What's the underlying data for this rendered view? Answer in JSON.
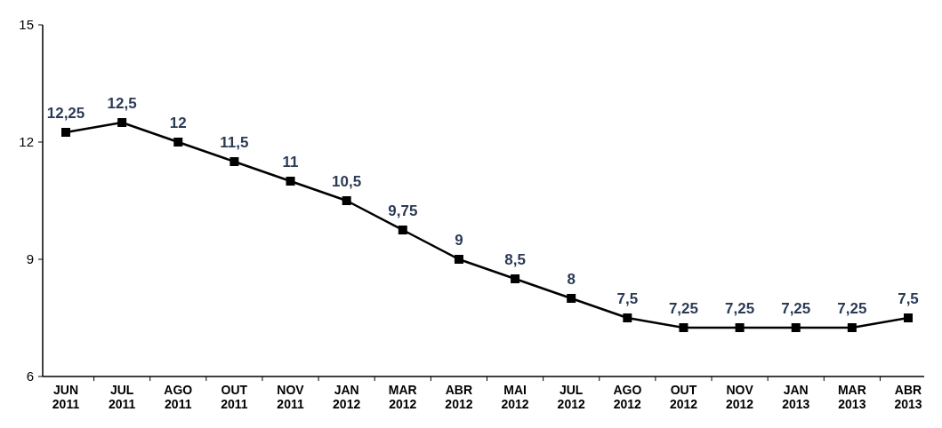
{
  "chart_data": {
    "type": "line",
    "categories": [
      "JUN 2011",
      "JUL 2011",
      "AGO 2011",
      "OUT 2011",
      "NOV 2011",
      "JAN 2012",
      "MAR 2012",
      "ABR 2012",
      "MAI 2012",
      "JUL 2012",
      "AGO 2012",
      "OUT 2012",
      "NOV 2012",
      "JAN 2013",
      "MAR 2013",
      "ABR 2013"
    ],
    "series": [
      {
        "color": "#000000",
        "values": [
          12.25,
          12.5,
          12,
          11.5,
          11,
          10.5,
          9.75,
          9,
          8.5,
          8,
          7.5,
          7.25,
          7.25,
          7.25,
          7.25,
          7.5
        ],
        "value_labels": [
          "12,25",
          "12,5",
          "12",
          "11,5",
          "11",
          "10,5",
          "9,75",
          "9",
          "8,5",
          "8",
          "7,5",
          "7,25",
          "7,25",
          "7,25",
          "7,25",
          "7,5"
        ]
      }
    ],
    "ylim": [
      6,
      15
    ],
    "yticks": [
      6,
      9,
      12,
      15
    ],
    "grid": false,
    "marker": "square",
    "line_style": "solid"
  }
}
